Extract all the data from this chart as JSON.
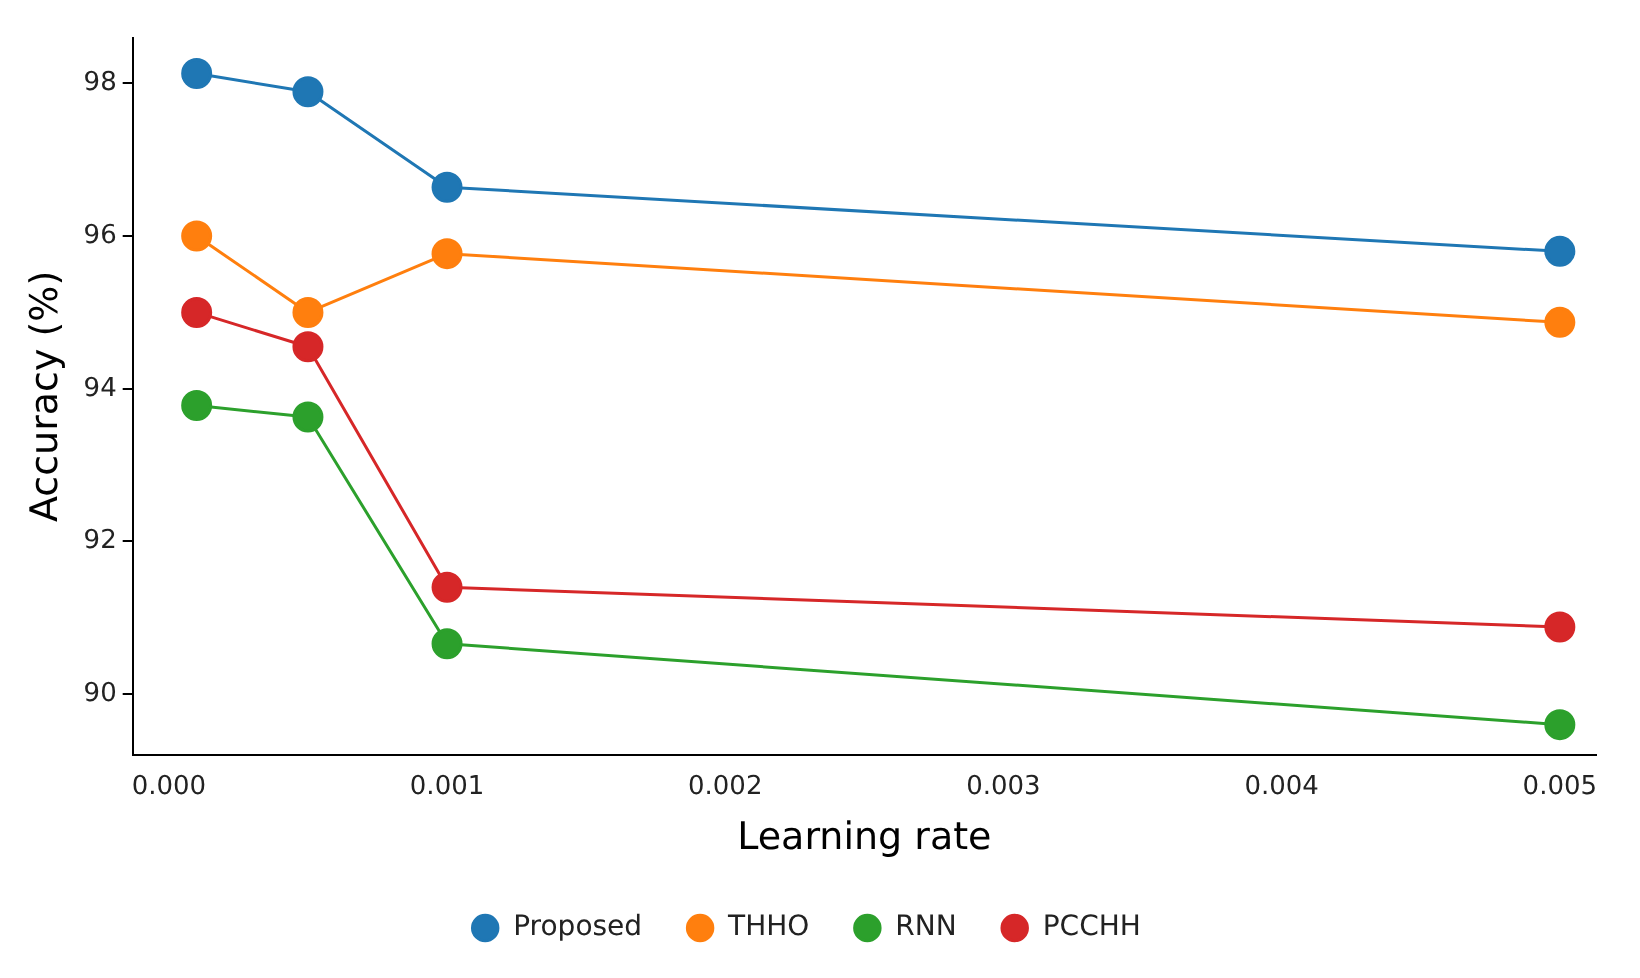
{
  "chart_data": {
    "type": "line",
    "xlabel": "Learning rate",
    "ylabel": "Accuracy (%)",
    "x": [
      0.0001,
      0.0005,
      0.001,
      0.005
    ],
    "series": [
      {
        "name": "Proposed",
        "color": "#1f77b4",
        "values": [
          98.13,
          97.89,
          96.64,
          95.8
        ]
      },
      {
        "name": "THHO",
        "color": "#ff7f0e",
        "values": [
          96.0,
          95.0,
          95.77,
          94.87
        ]
      },
      {
        "name": "RNN",
        "color": "#2ca02c",
        "values": [
          93.78,
          93.63,
          90.66,
          89.6
        ]
      },
      {
        "name": "PCCHH",
        "color": "#d62728",
        "values": [
          95.0,
          94.55,
          91.4,
          90.88
        ]
      }
    ],
    "xlim": [
      -0.00013,
      0.00513
    ],
    "xticks": [
      {
        "value": 0,
        "label": "0.000"
      },
      {
        "value": 0.001,
        "label": "0.001"
      },
      {
        "value": 0.002,
        "label": "0.002"
      },
      {
        "value": 0.003,
        "label": "0.003"
      },
      {
        "value": 0.004,
        "label": "0.004"
      },
      {
        "value": 0.005,
        "label": "0.005"
      }
    ],
    "ylim": [
      89.2,
      98.6
    ],
    "yticks": [
      90,
      92,
      94,
      96,
      98
    ],
    "legend": "bottom",
    "marker": "circle",
    "line_style": "solid",
    "grid": false
  }
}
